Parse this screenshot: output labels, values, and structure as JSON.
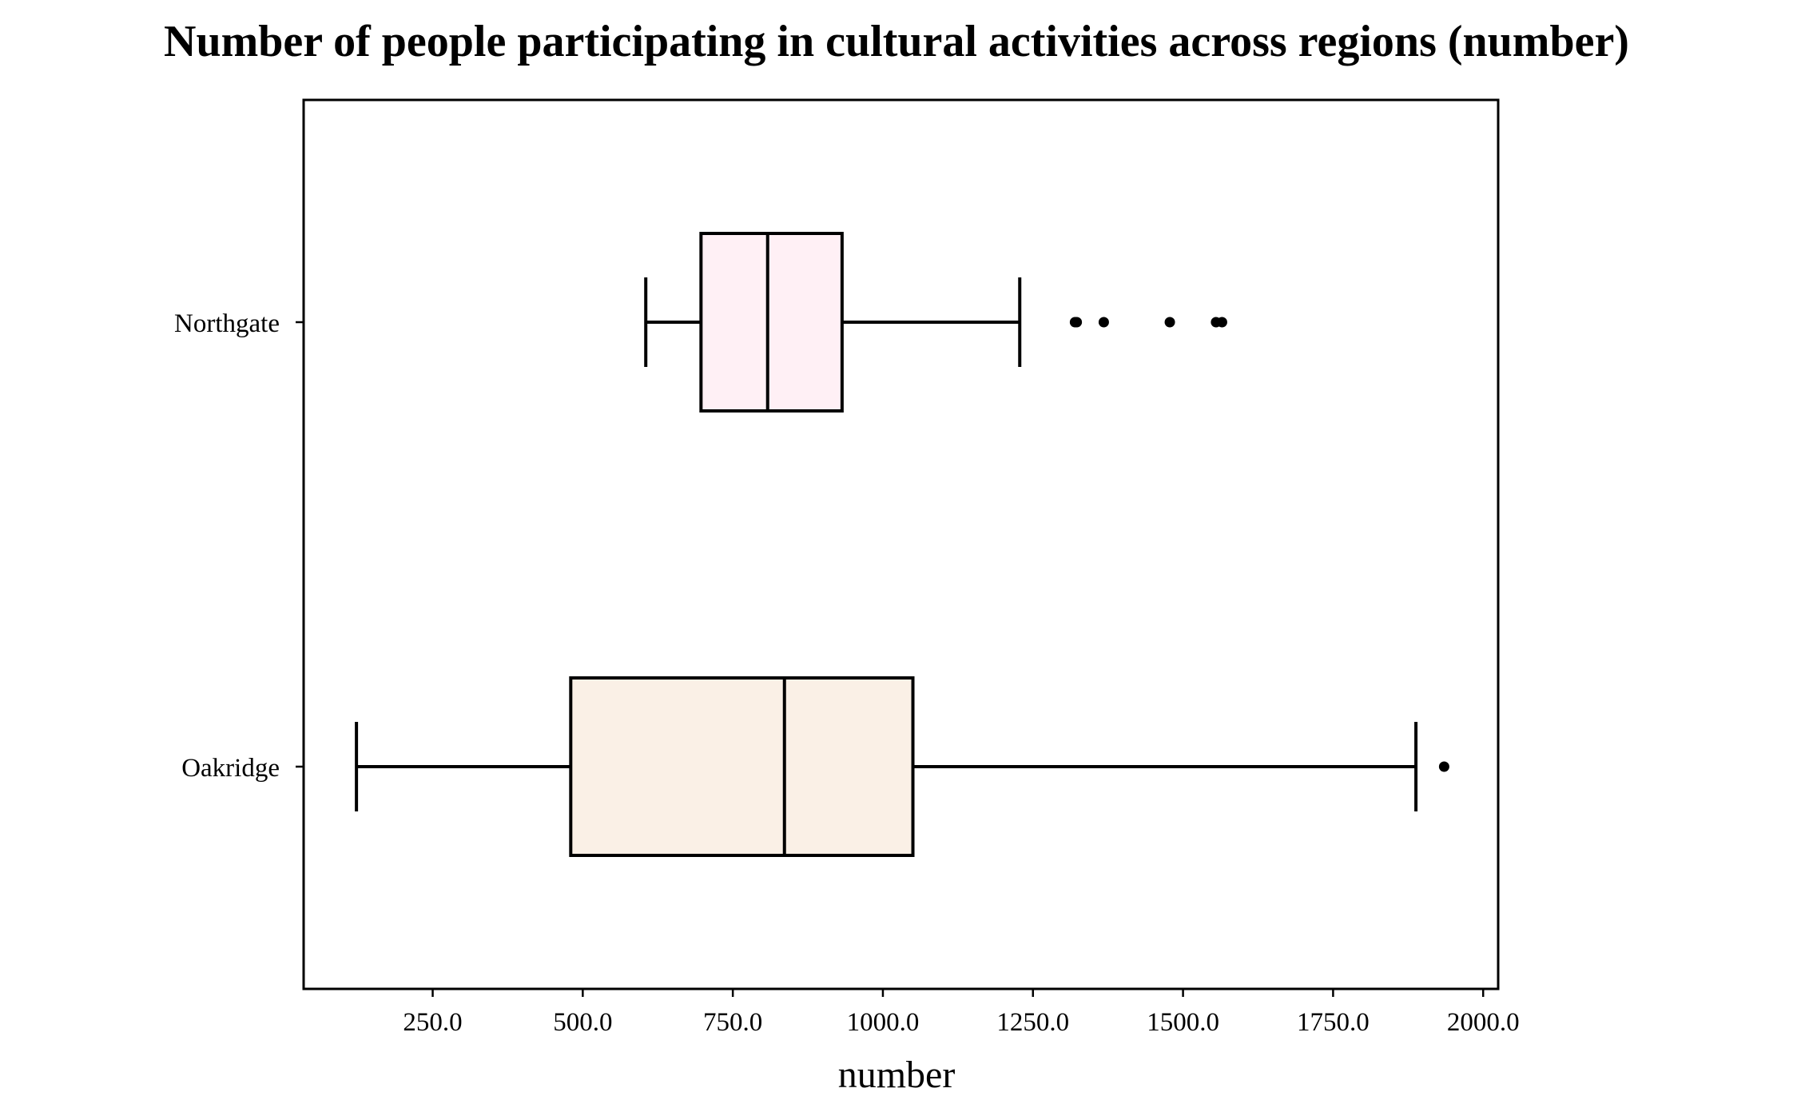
{
  "chart_data": {
    "type": "box",
    "orientation": "horizontal",
    "title": "Number of people participating in cultural activities across regions (number)",
    "xlabel": "number",
    "ylabel": "",
    "xlim": [
      35,
      2025
    ],
    "xticks": [
      250.0,
      500.0,
      750.0,
      1000.0,
      1250.0,
      1500.0,
      1750.0,
      2000.0
    ],
    "xtick_labels": [
      "250.0",
      "500.0",
      "750.0",
      "1000.0",
      "1250.0",
      "1500.0",
      "1750.0",
      "2000.0"
    ],
    "grid": false,
    "categories": [
      "Northgate",
      "Oakridge"
    ],
    "series": [
      {
        "category": "Northgate",
        "whisker_low": 605,
        "q1": 697,
        "median": 808,
        "q3": 932,
        "whisker_high": 1228,
        "outliers": [
          1320,
          1323,
          1368,
          1478,
          1555,
          1565
        ],
        "fill": "#fff0f5"
      },
      {
        "category": "Oakridge",
        "whisker_low": 123,
        "q1": 480,
        "median": 836,
        "q3": 1050,
        "whisker_high": 1888,
        "outliers": [
          1935
        ],
        "fill": "#faf0e6"
      }
    ],
    "colors": {
      "line": "#000000",
      "background": "#ffffff"
    }
  }
}
